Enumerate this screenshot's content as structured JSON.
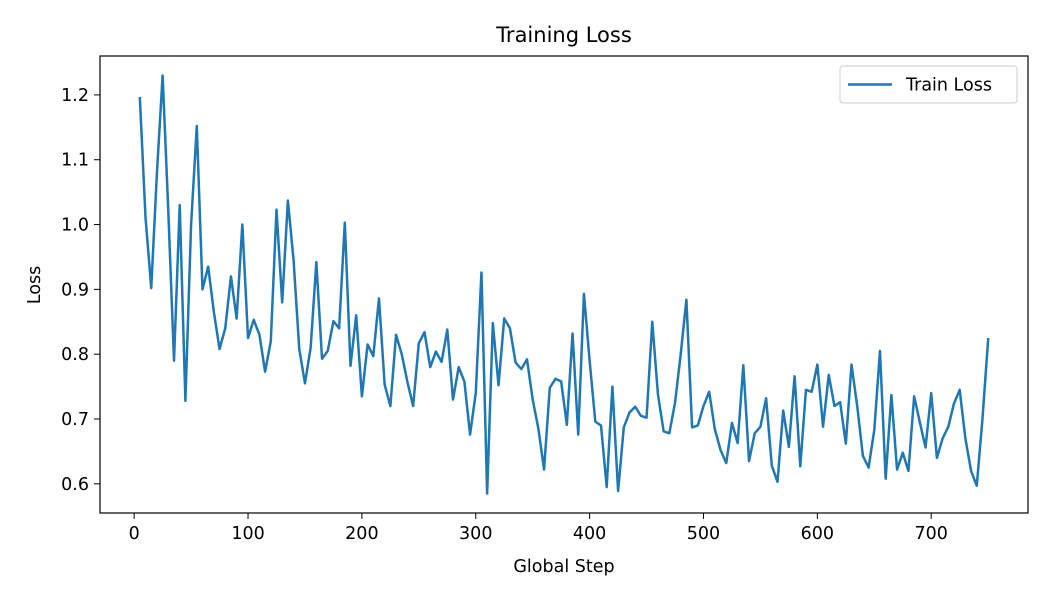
{
  "chart_data": {
    "type": "line",
    "title": "Training Loss",
    "xlabel": "Global Step",
    "ylabel": "Loss",
    "xlim": [
      -30,
      785
    ],
    "ylim": [
      0.555,
      1.26
    ],
    "xticks": [
      0,
      100,
      200,
      300,
      400,
      500,
      600,
      700
    ],
    "yticks": [
      0.6,
      0.7,
      0.8,
      0.9,
      1.0,
      1.1,
      1.2
    ],
    "xtick_labels": [
      "0",
      "100",
      "200",
      "300",
      "400",
      "500",
      "600",
      "700"
    ],
    "ytick_labels": [
      "0.6",
      "0.7",
      "0.8",
      "0.9",
      "1.0",
      "1.1",
      "1.2"
    ],
    "grid": false,
    "legend": {
      "position": "top-right",
      "entries": [
        "Train Loss"
      ]
    },
    "series": [
      {
        "name": "Train Loss",
        "color": "#1f77b4",
        "x": [
          5,
          10,
          15,
          20,
          25,
          30,
          35,
          40,
          45,
          50,
          55,
          60,
          65,
          70,
          75,
          80,
          85,
          90,
          95,
          100,
          105,
          110,
          115,
          120,
          125,
          130,
          135,
          140,
          145,
          150,
          155,
          160,
          165,
          170,
          175,
          180,
          185,
          190,
          195,
          200,
          205,
          210,
          215,
          220,
          225,
          230,
          235,
          240,
          245,
          250,
          255,
          260,
          265,
          270,
          275,
          280,
          285,
          290,
          295,
          300,
          305,
          310,
          315,
          320,
          325,
          330,
          335,
          340,
          345,
          350,
          355,
          360,
          365,
          370,
          375,
          380,
          385,
          390,
          395,
          400,
          405,
          410,
          415,
          420,
          425,
          430,
          435,
          440,
          445,
          450,
          455,
          460,
          465,
          470,
          475,
          480,
          485,
          490,
          495,
          500,
          505,
          510,
          515,
          520,
          525,
          530,
          535,
          540,
          545,
          550,
          555,
          560,
          565,
          570,
          575,
          580,
          585,
          590,
          595,
          600,
          605,
          610,
          615,
          620,
          625,
          630,
          635,
          640,
          645,
          650,
          655,
          660,
          665,
          670,
          675,
          680,
          685,
          690,
          695,
          700,
          705,
          710,
          715,
          720,
          725,
          730,
          735,
          740,
          745,
          750
        ],
        "y": [
          1.195,
          1.01,
          0.902,
          1.08,
          1.23,
          1.02,
          0.79,
          1.03,
          0.728,
          1.0,
          1.152,
          0.9,
          0.935,
          0.865,
          0.808,
          0.84,
          0.92,
          0.855,
          1.0,
          0.825,
          0.853,
          0.83,
          0.773,
          0.82,
          1.023,
          0.88,
          1.037,
          0.945,
          0.808,
          0.755,
          0.81,
          0.942,
          0.793,
          0.805,
          0.851,
          0.84,
          1.003,
          0.782,
          0.86,
          0.735,
          0.815,
          0.797,
          0.886,
          0.753,
          0.72,
          0.83,
          0.8,
          0.757,
          0.72,
          0.817,
          0.834,
          0.78,
          0.804,
          0.788,
          0.838,
          0.73,
          0.78,
          0.758,
          0.676,
          0.74,
          0.926,
          0.585,
          0.848,
          0.752,
          0.855,
          0.84,
          0.787,
          0.777,
          0.792,
          0.73,
          0.685,
          0.622,
          0.748,
          0.762,
          0.758,
          0.691,
          0.832,
          0.676,
          0.893,
          0.79,
          0.696,
          0.69,
          0.595,
          0.75,
          0.589,
          0.687,
          0.71,
          0.719,
          0.705,
          0.702,
          0.85,
          0.738,
          0.681,
          0.678,
          0.725,
          0.8,
          0.884,
          0.687,
          0.69,
          0.72,
          0.742,
          0.684,
          0.652,
          0.632,
          0.694,
          0.663,
          0.783,
          0.635,
          0.678,
          0.688,
          0.732,
          0.628,
          0.603,
          0.713,
          0.657,
          0.766,
          0.627,
          0.745,
          0.742,
          0.784,
          0.688,
          0.768,
          0.72,
          0.726,
          0.662,
          0.784,
          0.72,
          0.643,
          0.625,
          0.683,
          0.805,
          0.608,
          0.737,
          0.622,
          0.648,
          0.62,
          0.735,
          0.695,
          0.656,
          0.74,
          0.64,
          0.67,
          0.688,
          0.724,
          0.745,
          0.67,
          0.62,
          0.597,
          0.7,
          0.823
        ]
      }
    ]
  }
}
